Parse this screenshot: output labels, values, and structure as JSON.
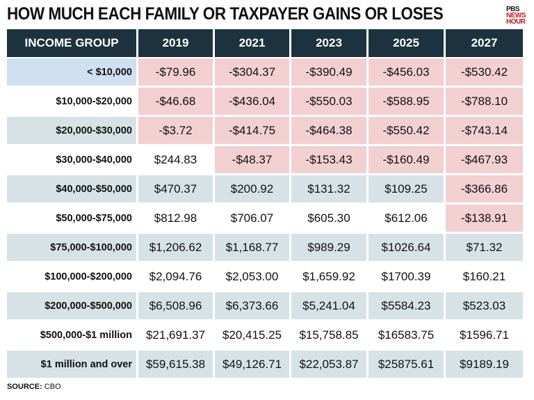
{
  "title": "HOW MUCH EACH FAMILY OR TAXPAYER GAINS OR LOSES",
  "logo": {
    "line1": "PBS",
    "line2": "NEWS",
    "line3": "HOUR"
  },
  "colors": {
    "header": "#1c333f",
    "negative": "#f2d0d2",
    "stripe": "#d7e2e6",
    "selected": "#cfe0f0"
  },
  "source": {
    "label": "SOURCE:",
    "value": "CBO"
  },
  "chart_data": {
    "type": "table",
    "title": "HOW MUCH EACH FAMILY OR TAXPAYER GAINS OR LOSES",
    "columns": [
      "INCOME GROUP",
      "2019",
      "2021",
      "2023",
      "2025",
      "2027"
    ],
    "rows": [
      {
        "group": "< $10,000",
        "values": [
          "-$79.96",
          "-$304.37",
          "-$390.49",
          "-$456.03",
          "-$530.42"
        ]
      },
      {
        "group": "$10,000-$20,000",
        "values": [
          "-$46.68",
          "-$436.04",
          "-$550.03",
          "-$588.95",
          "-$788.10"
        ]
      },
      {
        "group": "$20,000-$30,000",
        "values": [
          "-$3.72",
          "-$414.75",
          "-$464.38",
          "-$550.42",
          "-$743.14"
        ]
      },
      {
        "group": "$30,000-$40,000",
        "values": [
          "$244.83",
          "-$48.37",
          "-$153.43",
          "-$160.49",
          "-$467.93"
        ]
      },
      {
        "group": "$40,000-$50,000",
        "values": [
          "$470.37",
          "$200.92",
          "$131.32",
          "$109.25",
          "-$366.86"
        ]
      },
      {
        "group": "$50,000-$75,000",
        "values": [
          "$812.98",
          "$706.07",
          "$605.30",
          "$612.06",
          "-$138.91"
        ]
      },
      {
        "group": "$75,000-$100,000",
        "values": [
          "$1,206.62",
          "$1,168.77",
          "$989.29",
          "$1026.64",
          "$71.32"
        ]
      },
      {
        "group": "$100,000-$200,000",
        "values": [
          "$2,094.76",
          "$2,053.00",
          "$1,659.92",
          "$1700.39",
          "$160.21"
        ]
      },
      {
        "group": "$200,000-$500,000",
        "values": [
          "$6,508.96",
          "$6,373.66",
          "$5,241.04",
          "$5584.23",
          "$523.03"
        ]
      },
      {
        "group": "$500,000-$1 million",
        "values": [
          "$21,691.37",
          "$20,415.25",
          "$15,758.85",
          "$16583.75",
          "$1596.71"
        ]
      },
      {
        "group": "$1 million and over",
        "values": [
          "$59,615.38",
          "$49,126.71",
          "$22,053.87",
          "$25875.61",
          "$9189.19"
        ]
      }
    ]
  }
}
